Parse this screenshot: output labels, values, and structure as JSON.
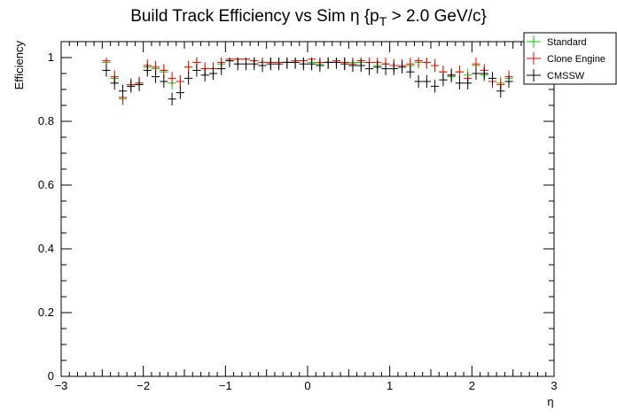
{
  "chart_data": {
    "type": "scatter",
    "title_main": "Build Track Efficiency vs Sim η {p",
    "title_sub": "T",
    "title_tail": " > 2.0 GeV/c}",
    "xlabel": "η",
    "ylabel": "Efficiency",
    "xlim": [
      -3,
      3
    ],
    "ylim": [
      0,
      1.05
    ],
    "x_ticks": [
      -3,
      -2,
      -1,
      0,
      1,
      2,
      3
    ],
    "x_tick_labels": [
      "−3",
      "−2",
      "−1",
      "0",
      "1",
      "2",
      "3"
    ],
    "y_ticks": [
      0,
      0.2,
      0.4,
      0.6,
      0.8,
      1
    ],
    "y_tick_labels": [
      "0",
      "0.2",
      "0.4",
      "0.6",
      "0.8",
      "1"
    ],
    "grid": false,
    "legend_position": "top-right",
    "x": [
      -2.45,
      -2.35,
      -2.25,
      -2.15,
      -2.05,
      -1.95,
      -1.85,
      -1.75,
      -1.65,
      -1.55,
      -1.45,
      -1.35,
      -1.25,
      -1.15,
      -1.05,
      -0.95,
      -0.85,
      -0.75,
      -0.65,
      -0.55,
      -0.45,
      -0.35,
      -0.25,
      -0.15,
      -0.05,
      0.05,
      0.15,
      0.25,
      0.35,
      0.45,
      0.55,
      0.65,
      0.75,
      0.85,
      0.95,
      1.05,
      1.15,
      1.25,
      1.35,
      1.45,
      1.55,
      1.65,
      1.75,
      1.85,
      1.95,
      2.05,
      2.15,
      2.25,
      2.35,
      2.45
    ],
    "series": [
      {
        "name": "Standard",
        "color": "#00cc00",
        "values": [
          0.985,
          0.935,
          0.87,
          0.915,
          0.92,
          0.97,
          0.965,
          0.955,
          0.92,
          0.925,
          0.97,
          0.985,
          0.965,
          0.965,
          0.98,
          0.99,
          0.995,
          0.995,
          0.99,
          0.985,
          0.985,
          0.985,
          0.985,
          0.985,
          0.99,
          0.985,
          0.98,
          0.985,
          0.985,
          0.985,
          0.985,
          0.985,
          0.985,
          0.975,
          0.98,
          0.975,
          0.975,
          0.975,
          0.985,
          0.985,
          0.975,
          0.955,
          0.94,
          0.955,
          0.945,
          0.975,
          0.945,
          0.925,
          0.92,
          0.935
        ]
      },
      {
        "name": "Clone Engine",
        "color": "#ff0000",
        "values": [
          0.99,
          0.94,
          0.875,
          0.915,
          0.92,
          0.975,
          0.97,
          0.96,
          0.935,
          0.925,
          0.97,
          0.985,
          0.965,
          0.965,
          0.985,
          0.995,
          0.995,
          0.995,
          0.99,
          0.985,
          0.985,
          0.985,
          0.985,
          0.99,
          0.99,
          0.995,
          0.985,
          0.985,
          0.99,
          0.985,
          0.98,
          0.99,
          0.985,
          0.985,
          0.98,
          0.975,
          0.975,
          0.98,
          0.99,
          0.985,
          0.975,
          0.955,
          0.945,
          0.955,
          0.935,
          0.98,
          0.96,
          0.925,
          0.915,
          0.94
        ]
      },
      {
        "name": "CMSSW",
        "color": "#000000",
        "values": [
          0.96,
          0.92,
          0.895,
          0.91,
          0.915,
          0.96,
          0.94,
          0.925,
          0.87,
          0.89,
          0.935,
          0.96,
          0.945,
          0.95,
          0.965,
          0.99,
          0.98,
          0.98,
          0.98,
          0.975,
          0.98,
          0.98,
          0.985,
          0.985,
          0.98,
          0.98,
          0.975,
          0.985,
          0.985,
          0.98,
          0.975,
          0.975,
          0.965,
          0.97,
          0.965,
          0.965,
          0.97,
          0.955,
          0.925,
          0.925,
          0.91,
          0.93,
          0.945,
          0.92,
          0.92,
          0.95,
          0.95,
          0.935,
          0.895,
          0.925
        ]
      }
    ],
    "error_bar": 0.02
  }
}
